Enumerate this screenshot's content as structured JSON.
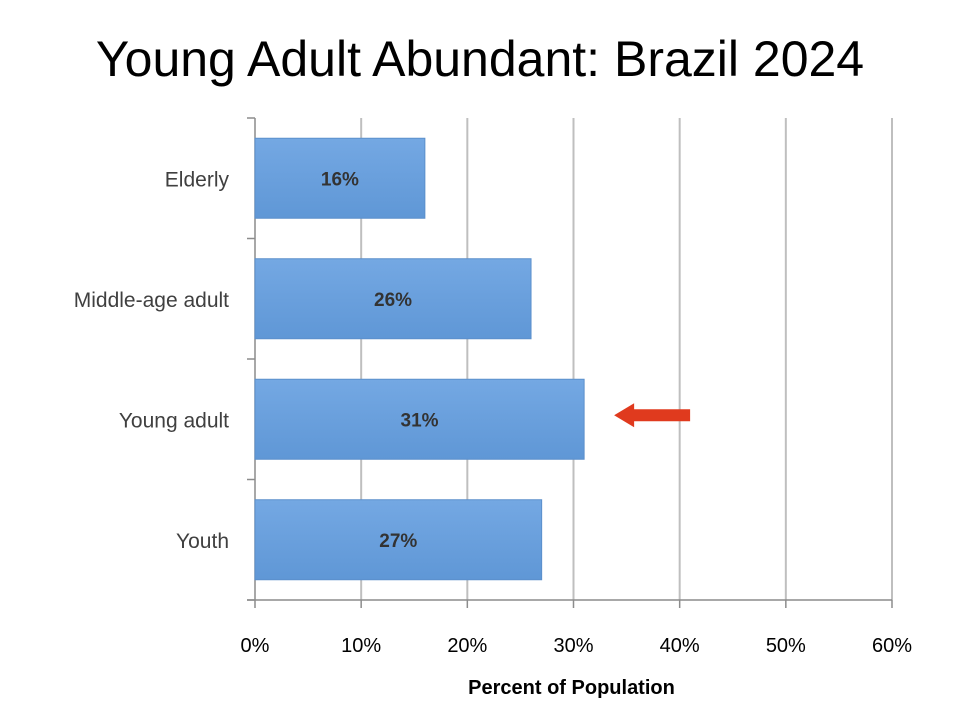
{
  "page": {
    "title": "Young Adult Abundant: Brazil 2024"
  },
  "colors": {
    "bar": "#6a9fdc",
    "bar_edge": "#5b8fcb",
    "grid": "#bfbfbf",
    "axis": "#8c8c8c",
    "arrow": "#e03a1e"
  },
  "chart_data": {
    "type": "bar",
    "orientation": "horizontal",
    "categories": [
      "Elderly",
      "Middle-age adult",
      "Young adult",
      "Youth"
    ],
    "values": [
      16,
      26,
      31,
      27
    ],
    "data_labels": [
      "16%",
      "26%",
      "31%",
      "27%"
    ],
    "x_ticks": [
      "0%",
      "10%",
      "20%",
      "30%",
      "40%",
      "50%",
      "60%"
    ],
    "xlim": [
      0,
      60
    ],
    "xlabel": "Percent of Population",
    "ylabel": "",
    "grid": true,
    "annotation": {
      "type": "arrow",
      "points_to": "Young adult",
      "icon": "left-arrow-icon"
    }
  }
}
